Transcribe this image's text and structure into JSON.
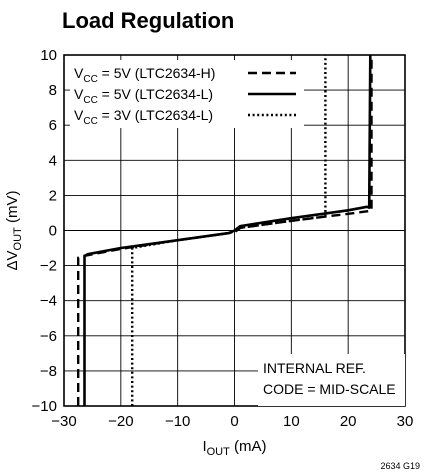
{
  "chart_data": {
    "type": "line",
    "title": "Load Regulation",
    "xlabel": "I_OUT (mA)",
    "ylabel": "ΔV_OUT (mV)",
    "xlim": [
      -30,
      30
    ],
    "ylim": [
      -10,
      10
    ],
    "x_ticks": [
      -30,
      -20,
      -10,
      0,
      10,
      20,
      30
    ],
    "y_ticks": [
      -10,
      -8,
      -6,
      -4,
      -2,
      0,
      2,
      4,
      6,
      8,
      10
    ],
    "x_tick_labels": [
      "−30",
      "−20",
      "−10",
      "0",
      "10",
      "20",
      "30"
    ],
    "y_tick_labels": [
      "−10",
      "−8",
      "−6",
      "−4",
      "−2",
      "0",
      "2",
      "4",
      "6",
      "8",
      "10"
    ],
    "grid": true,
    "legend_position": "top-left",
    "series": [
      {
        "name": "V_CC = 5V (LTC2634-H)",
        "style": "dashed",
        "points": [
          [
            -27.5,
            -10
          ],
          [
            -27.5,
            -1.55
          ],
          [
            -26.5,
            -1.45
          ],
          [
            -20,
            -1.05
          ],
          [
            -10,
            -0.55
          ],
          [
            -1,
            -0.15
          ],
          [
            0,
            -0.1
          ],
          [
            1,
            0.15
          ],
          [
            10,
            0.55
          ],
          [
            20,
            0.95
          ],
          [
            23.5,
            1.1
          ],
          [
            24.1,
            1.15
          ],
          [
            24.1,
            10
          ]
        ]
      },
      {
        "name": "V_CC = 5V (LTC2634-L)",
        "style": "solid",
        "points": [
          [
            -26.4,
            -10
          ],
          [
            -26.4,
            -1.45
          ],
          [
            -25.8,
            -1.35
          ],
          [
            -20,
            -1.0
          ],
          [
            -10,
            -0.55
          ],
          [
            -1,
            -0.15
          ],
          [
            0,
            0.0
          ],
          [
            1,
            0.25
          ],
          [
            10,
            0.7
          ],
          [
            20,
            1.15
          ],
          [
            23.3,
            1.35
          ],
          [
            23.7,
            1.3
          ],
          [
            23.9,
            10
          ]
        ]
      },
      {
        "name": "V_CC = 3V (LTC2634-L)",
        "style": "dotted",
        "points": [
          [
            -18,
            -10
          ],
          [
            -18,
            -1.0
          ],
          [
            -10,
            -0.55
          ],
          [
            -1,
            -0.15
          ],
          [
            0,
            -0.05
          ],
          [
            1,
            0.15
          ],
          [
            10,
            0.55
          ],
          [
            16,
            0.8
          ],
          [
            16,
            10
          ]
        ]
      }
    ],
    "legend": {
      "entries": [
        {
          "pre": "V",
          "sub": "CC",
          "post": " = 5V (LTC2634-H)",
          "style": "dashed"
        },
        {
          "pre": "V",
          "sub": "CC",
          "post": " = 5V (LTC2634-L)",
          "style": "solid"
        },
        {
          "pre": "V",
          "sub": "CC",
          "post": " = 3V (LTC2634-L)",
          "style": "dotted"
        }
      ]
    },
    "annotations": [
      "INTERNAL REF.",
      "CODE = MID-SCALE"
    ],
    "figure_id": "2634 G19",
    "axis_label_parts": {
      "x": {
        "pre": "I",
        "sub": "OUT",
        "post": " (mA)"
      },
      "y": {
        "pre": "ΔV",
        "sub": "OUT",
        "post": " (mV)"
      }
    }
  }
}
